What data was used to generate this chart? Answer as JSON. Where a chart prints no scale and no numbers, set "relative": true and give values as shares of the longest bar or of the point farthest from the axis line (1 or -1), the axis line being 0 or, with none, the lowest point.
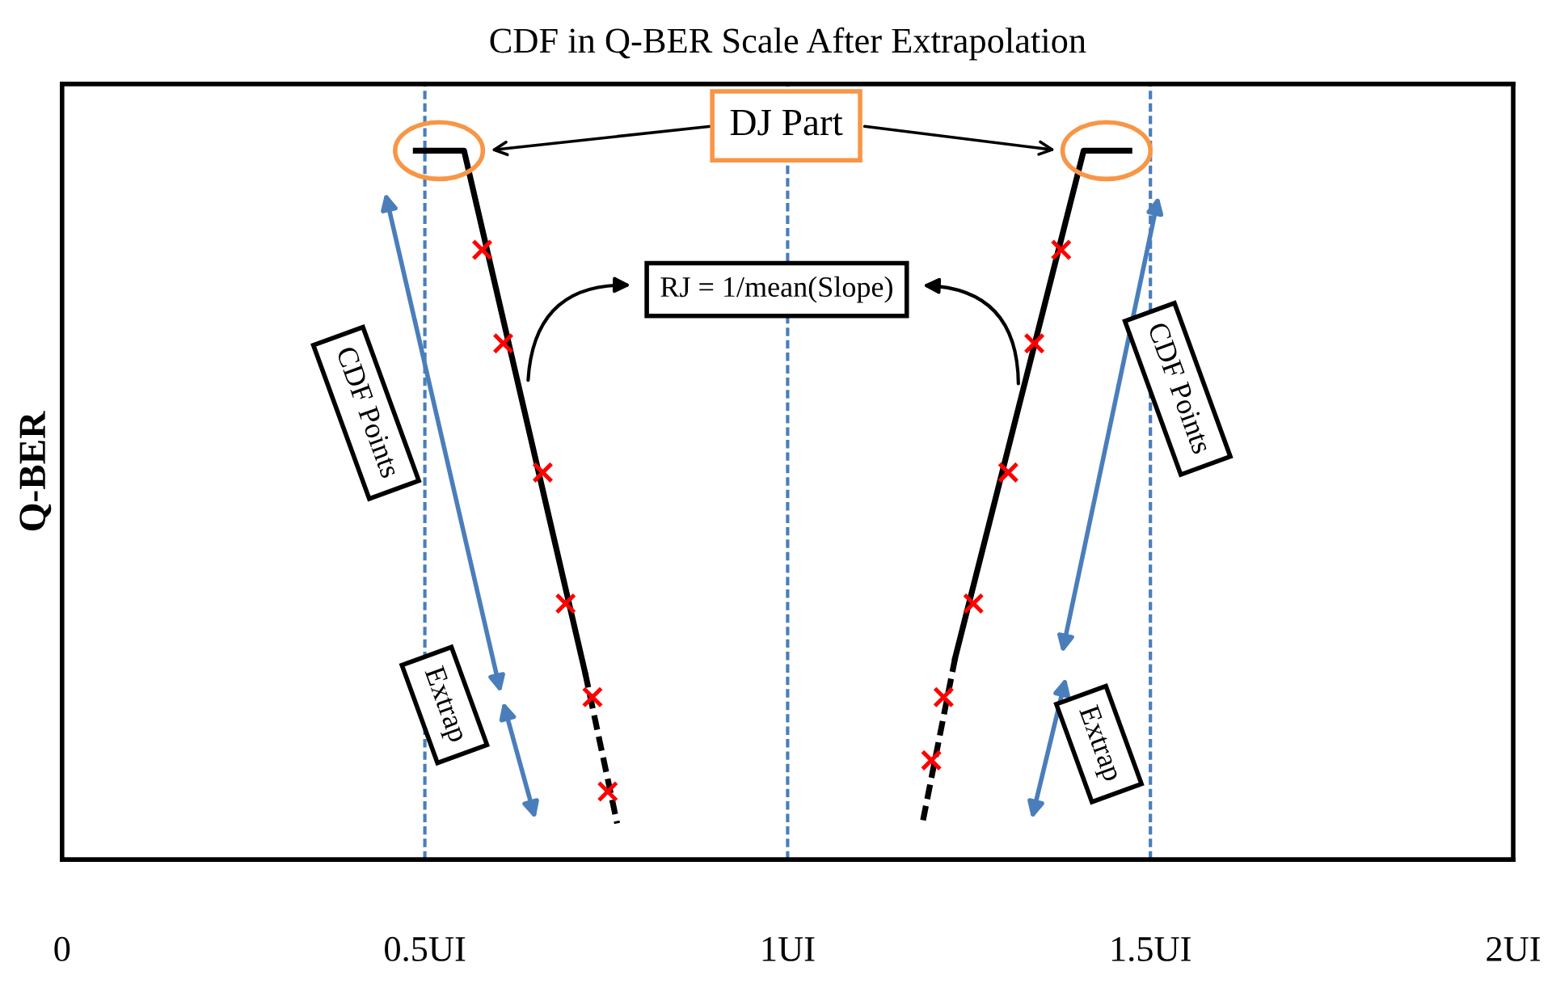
{
  "chart_data": {
    "type": "line",
    "title": "CDF in Q-BER Scale After Extrapolation",
    "ylabel": "Q-BER",
    "relative": true,
    "xlim": [
      0,
      2
    ],
    "xticks": [
      {
        "value": 0,
        "label": "0"
      },
      {
        "value": 0.5,
        "label": "0.5UI"
      },
      {
        "value": 1,
        "label": "1UI"
      },
      {
        "value": 1.5,
        "label": "1.5UI"
      },
      {
        "value": 2,
        "label": "2UI"
      }
    ],
    "tick_labels": "x",
    "series": [
      {
        "type": "line",
        "color": "#000000",
        "line_style": "solid",
        "marker": "none",
        "x": [
          0.4875,
          0.554,
          0.721
        ],
        "values": [
          1,
          1,
          0.263
        ]
      },
      {
        "type": "line",
        "color": "#000000",
        "line_style": "dashed",
        "marker": "none",
        "x": [
          0.721,
          0.765
        ],
        "values": [
          0.263,
          0.051
        ]
      },
      {
        "type": "line",
        "color": "#000000",
        "line_style": "solid",
        "marker": "none",
        "x": [
          1.471,
          1.408,
          1.231
        ],
        "values": [
          1,
          1,
          0.285
        ]
      },
      {
        "type": "line",
        "color": "#000000",
        "line_style": "dashed",
        "marker": "none",
        "x": [
          1.231,
          1.185
        ],
        "values": [
          0.285,
          0.047
        ]
      },
      {
        "type": "scatter",
        "color": "#ff0000",
        "marker": "cross",
        "x": [
          0.579,
          0.608,
          0.6625,
          0.694,
          0.731,
          0.752
        ],
        "values": [
          0.86,
          0.728,
          0.546,
          0.361,
          0.229,
          0.096
        ]
      },
      {
        "type": "scatter",
        "color": "#ff0000",
        "marker": "cross",
        "x": [
          1.377,
          1.34,
          1.304,
          1.256,
          1.215,
          1.198
        ],
        "values": [
          0.86,
          0.728,
          0.546,
          0.361,
          0.229,
          0.14
        ]
      }
    ],
    "ref_lines": [
      {
        "axis": "x",
        "value": 0.5,
        "color": "#4a7ebb",
        "line_style": "dashed"
      },
      {
        "axis": "x",
        "value": 1,
        "color": "#4a7ebb",
        "line_style": "dashed"
      },
      {
        "axis": "x",
        "value": 1.5,
        "color": "#4a7ebb",
        "line_style": "dashed"
      }
    ],
    "annotations": [
      "DJ Part",
      "RJ = 1/mean(Slope)",
      "CDF Points",
      "Extrap",
      "CDF Points",
      "Extrap"
    ]
  }
}
